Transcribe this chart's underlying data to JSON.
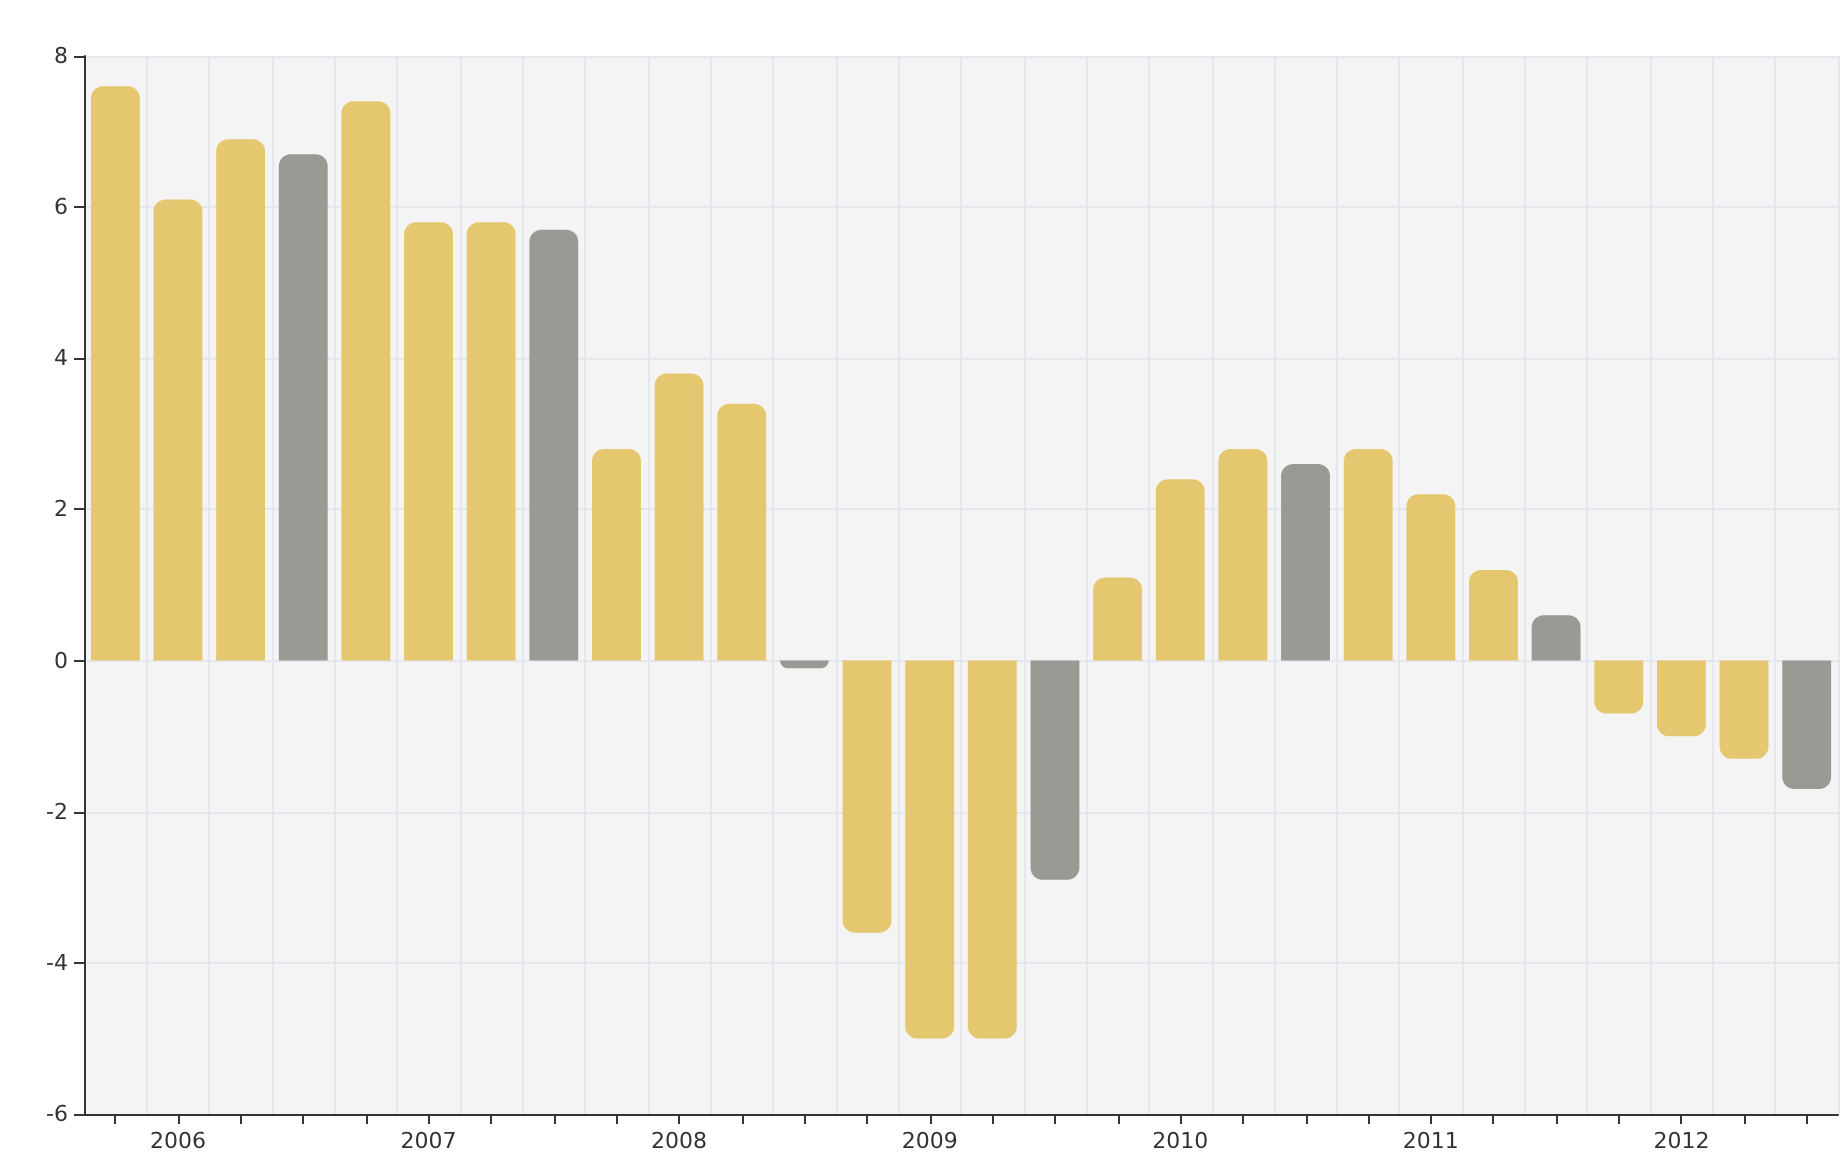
{
  "chart_data": {
    "type": "bar",
    "categories": [
      null,
      "2006",
      null,
      null,
      null,
      "2007",
      null,
      null,
      null,
      "2008",
      null,
      null,
      null,
      "2009",
      null,
      null,
      null,
      "2010",
      null,
      null,
      null,
      "2011",
      null,
      null,
      null,
      "2012",
      null,
      null
    ],
    "values": [
      7.6,
      6.1,
      6.9,
      6.7,
      7.4,
      5.8,
      5.8,
      5.7,
      2.8,
      3.8,
      3.4,
      -0.1,
      -3.6,
      -5.0,
      -5.0,
      -2.9,
      1.1,
      2.4,
      2.8,
      2.6,
      2.8,
      2.2,
      1.2,
      0.6,
      -0.7,
      -1.0,
      -1.3,
      -1.7
    ],
    "colors": [
      "#e5c76f",
      "#e5c76f",
      "#e5c76f",
      "#9a9a94",
      "#e5c76f",
      "#e5c76f",
      "#e5c76f",
      "#9a9a94",
      "#e5c76f",
      "#e5c76f",
      "#e5c76f",
      "#9a9a94",
      "#e5c76f",
      "#e5c76f",
      "#e5c76f",
      "#9a9a94",
      "#e5c76f",
      "#e5c76f",
      "#e5c76f",
      "#9a9a94",
      "#e5c76f",
      "#e5c76f",
      "#e5c76f",
      "#9a9a94",
      "#e5c76f",
      "#e5c76f",
      "#e5c76f",
      "#9a9a94"
    ],
    "ylim": [
      -6,
      8
    ],
    "yticks": [
      -6,
      -4,
      -2,
      0,
      2,
      4,
      6,
      8
    ],
    "grid": true
  }
}
